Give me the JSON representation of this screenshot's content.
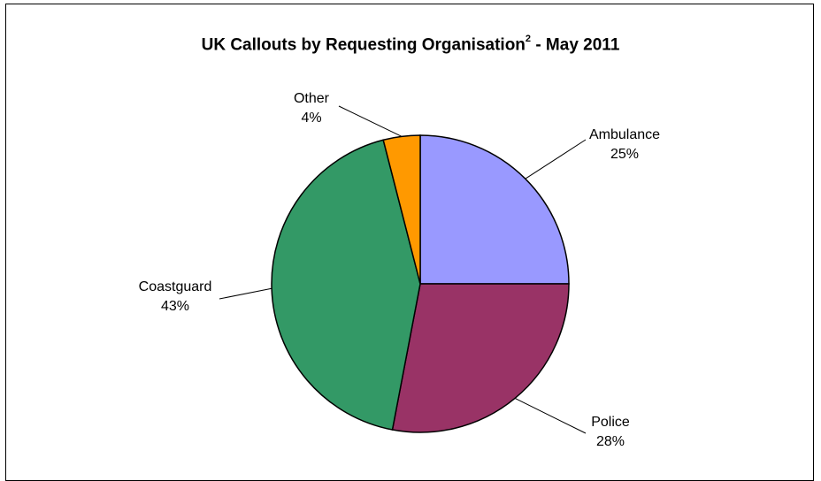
{
  "chart_data": {
    "type": "pie",
    "title": "UK Callouts by Requesting Organisation",
    "title_superscript": "2",
    "title_suffix": " - May 2011",
    "start_angle_deg": 0,
    "direction": "clockwise",
    "slices": [
      {
        "label": "Ambulance",
        "value": 25,
        "pct_label": "25%",
        "color": "#9999ff"
      },
      {
        "label": "Police",
        "value": 28,
        "pct_label": "28%",
        "color": "#993366"
      },
      {
        "label": "Coastguard",
        "value": 43,
        "pct_label": "43%",
        "color": "#339966"
      },
      {
        "label": "Other",
        "value": 4,
        "pct_label": "4%",
        "color": "#ff9900"
      }
    ]
  }
}
